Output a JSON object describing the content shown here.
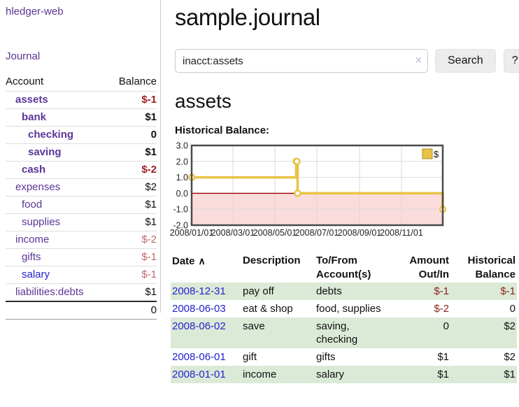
{
  "sidebar": {
    "brand": "hledger-web",
    "nav": {
      "journal": "Journal"
    },
    "accounts_table": {
      "headers": {
        "account": "Account",
        "balance": "Balance"
      },
      "rows": [
        {
          "name": "assets",
          "indent": 0,
          "bold": true,
          "balance": "$-1",
          "balance_style": "neg-bold",
          "link_style": "purple"
        },
        {
          "name": "bank",
          "indent": 1,
          "bold": true,
          "balance": "$1",
          "balance_style": "pos-bold",
          "link_style": "purple"
        },
        {
          "name": "checking",
          "indent": 2,
          "bold": true,
          "balance": "0",
          "balance_style": "pos-bold",
          "link_style": "purple"
        },
        {
          "name": "saving",
          "indent": 2,
          "bold": true,
          "balance": "$1",
          "balance_style": "pos-bold",
          "link_style": "purple"
        },
        {
          "name": "cash",
          "indent": 1,
          "bold": true,
          "balance": "$-2",
          "balance_style": "neg-bold",
          "link_style": "purple"
        },
        {
          "name": "expenses",
          "indent": 0,
          "bold": false,
          "balance": "$2",
          "balance_style": "pos",
          "link_style": "purple"
        },
        {
          "name": "food",
          "indent": 1,
          "bold": false,
          "balance": "$1",
          "balance_style": "pos",
          "link_style": "purple"
        },
        {
          "name": "supplies",
          "indent": 1,
          "bold": false,
          "balance": "$1",
          "balance_style": "pos",
          "link_style": "purple"
        },
        {
          "name": "income",
          "indent": 0,
          "bold": false,
          "balance": "$-2",
          "balance_style": "neg",
          "link_style": "purple"
        },
        {
          "name": "gifts",
          "indent": 1,
          "bold": false,
          "balance": "$-1",
          "balance_style": "neg",
          "link_style": "purple"
        },
        {
          "name": "salary",
          "indent": 1,
          "bold": false,
          "balance": "$-1",
          "balance_style": "neg",
          "link_style": "blue"
        },
        {
          "name": "liabilities:debts",
          "indent": 0,
          "bold": false,
          "balance": "$1",
          "balance_style": "pos",
          "link_style": "purple"
        }
      ],
      "total": "0"
    }
  },
  "header": {
    "title": "sample.journal"
  },
  "search": {
    "value": "inacct:assets",
    "clear_icon": "×",
    "button_label": "Search",
    "help_label": "?"
  },
  "account_page": {
    "heading": "assets",
    "chart_label": "Historical Balance:"
  },
  "chart_data": {
    "type": "line",
    "step": true,
    "title": "Historical Balance",
    "legend": "$",
    "legend_position": "top-right",
    "series": [
      {
        "name": "$",
        "color": "#e9c345",
        "points": [
          [
            "2008-01-01",
            1
          ],
          [
            "2008-06-01",
            2
          ],
          [
            "2008-06-02",
            2
          ],
          [
            "2008-06-03",
            0
          ],
          [
            "2008-12-31",
            -1
          ]
        ]
      }
    ],
    "xrange": [
      "2008-01-01",
      "2008-12-31"
    ],
    "ylim": [
      -2,
      3
    ],
    "yticks": [
      3,
      2,
      1,
      0,
      -1,
      -2
    ],
    "xticks": [
      "2008/01/01",
      "2008/03/01",
      "2008/05/01",
      "2008/07/01",
      "2008/09/01",
      "2008/11/01"
    ],
    "grid": true,
    "negative_fill": "#fbdcdc",
    "zero_line_color": "#a00000",
    "border_color": "#4a4a4a"
  },
  "register_table": {
    "headers": {
      "date": "Date",
      "sort_icon": "∧",
      "description": "Description",
      "accounts": "To/From Account(s)",
      "amount": "Amount Out/In",
      "balance": "Historical Balance"
    },
    "rows": [
      {
        "date": "2008-12-31",
        "description": "pay off",
        "accounts": "debts",
        "amount": "$-1",
        "amount_neg": true,
        "balance": "$-1",
        "balance_neg": true
      },
      {
        "date": "2008-06-03",
        "description": "eat & shop",
        "accounts": "food, supplies",
        "amount": "$-2",
        "amount_neg": true,
        "balance": "0",
        "balance_neg": false
      },
      {
        "date": "2008-06-02",
        "description": "save",
        "accounts": "saving, checking",
        "amount": "0",
        "amount_neg": false,
        "balance": "$2",
        "balance_neg": false
      },
      {
        "date": "2008-06-01",
        "description": "gift",
        "accounts": "gifts",
        "amount": "$1",
        "amount_neg": false,
        "balance": "$2",
        "balance_neg": false
      },
      {
        "date": "2008-01-01",
        "description": "income",
        "accounts": "salary",
        "amount": "$1",
        "amount_neg": false,
        "balance": "$1",
        "balance_neg": false
      }
    ]
  }
}
